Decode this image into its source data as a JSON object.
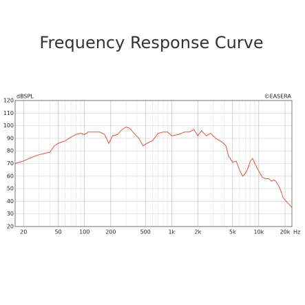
{
  "chart_data": {
    "type": "line",
    "title": "Frequency Response Curve",
    "ylabel": "dBSPL",
    "credit": "©EASERA",
    "xlabel": "Hz",
    "log_x": true,
    "grid": true,
    "xlim": [
      16,
      24000
    ],
    "ylim": [
      20,
      120
    ],
    "yticks": [
      20,
      30,
      40,
      50,
      60,
      70,
      80,
      90,
      100,
      110,
      120
    ],
    "xticks": [
      20,
      50,
      100,
      200,
      500,
      {
        "value": 1000,
        "label": "1k"
      },
      {
        "value": 2000,
        "label": "2k"
      },
      {
        "value": 5000,
        "label": "5k"
      },
      {
        "value": 10000,
        "label": "10k"
      },
      {
        "value": 20000,
        "label": "20k"
      }
    ],
    "xminor": [
      30,
      40,
      60,
      70,
      80,
      90,
      300,
      400,
      600,
      700,
      800,
      900,
      3000,
      4000,
      6000,
      7000,
      8000,
      9000
    ],
    "x": [
      16,
      20,
      25,
      30,
      35,
      40,
      45,
      50,
      60,
      70,
      80,
      90,
      100,
      110,
      130,
      150,
      170,
      190,
      210,
      240,
      270,
      300,
      330,
      370,
      420,
      470,
      520,
      600,
      700,
      800,
      900,
      1000,
      1200,
      1400,
      1600,
      1800,
      2000,
      2200,
      2500,
      2800,
      3200,
      3800,
      4200,
      4500,
      5000,
      5500,
      6000,
      6500,
      7000,
      7500,
      8000,
      8500,
      9000,
      10000,
      11000,
      12000,
      13000,
      14000,
      15000,
      16000,
      17000,
      18000,
      19000,
      20000,
      22000,
      24000
    ],
    "series": [
      {
        "color": "#d9553a",
        "values": [
          70,
          72,
          75,
          77,
          78,
          79,
          84,
          86,
          88,
          91,
          93,
          94,
          93,
          95,
          95,
          95,
          93,
          86,
          92,
          93,
          97,
          99,
          98,
          94,
          90,
          84,
          86,
          88,
          94,
          95,
          95,
          92,
          93,
          95,
          95,
          97,
          92,
          96,
          92,
          94,
          90,
          87,
          84,
          76,
          71,
          72,
          65,
          60,
          62,
          66,
          72,
          74,
          70,
          64,
          59,
          58,
          58,
          56,
          57,
          55,
          52,
          48,
          43,
          41,
          38,
          35
        ]
      }
    ]
  }
}
